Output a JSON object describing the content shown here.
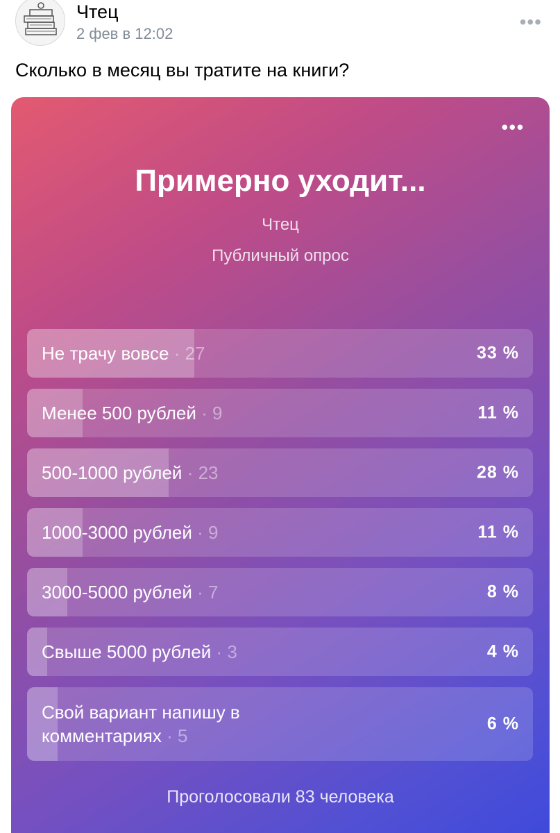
{
  "post": {
    "author": "Чтец",
    "date": "2 фев в 12:02",
    "menu_icon": "•••",
    "text": "Сколько в месяц вы тратите на книги?"
  },
  "poll": {
    "menu_icon": "•••",
    "title": "Примерно уходит...",
    "author": "Чтец",
    "type": "Публичный опрос",
    "options": [
      {
        "label": "Не трачу вовсе",
        "count": "· 27",
        "percent": "33 %",
        "share": 0.33
      },
      {
        "label": "Менее 500 рублей",
        "count": "· 9",
        "percent": "11 %",
        "share": 0.11
      },
      {
        "label": "500-1000 рублей",
        "count": "· 23",
        "percent": "28 %",
        "share": 0.28
      },
      {
        "label": "1000-3000 рублей",
        "count": "· 9",
        "percent": "11 %",
        "share": 0.11
      },
      {
        "label": "3000-5000 рублей",
        "count": "· 7",
        "percent": "8 %",
        "share": 0.08
      },
      {
        "label": "Свыше 5000 рублей",
        "count": "· 3",
        "percent": "4 %",
        "share": 0.04
      },
      {
        "label": "Свой вариант напишу в комментариях",
        "count": "· 5",
        "percent": "6 %",
        "share": 0.06
      }
    ],
    "total": "Проголосовали 83 человека"
  },
  "colors": {
    "gradient_start": "#e35a70",
    "gradient_end": "#3f4adb",
    "date_gray": "#818c99"
  }
}
